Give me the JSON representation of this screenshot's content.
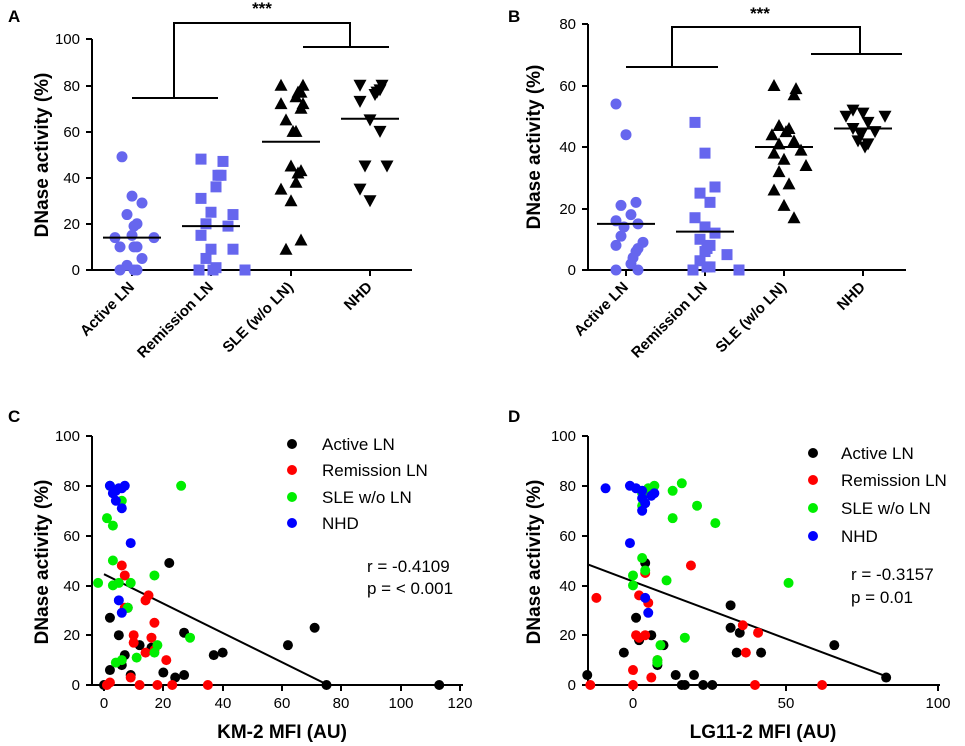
{
  "colors": {
    "active": "#000000",
    "remission": "#ff0000",
    "sle": "#00ee00",
    "nhd": "#0000ff",
    "scatter_blue": "#6666ee"
  },
  "chart_data": [
    {
      "id": "A",
      "type": "scatter",
      "panel_label": "A",
      "ylabel": "DNase activity (%)",
      "ylim": [
        0,
        100
      ],
      "yticks": [
        "0",
        "20",
        "40",
        "60",
        "80",
        "100"
      ],
      "categories": [
        "Active LN",
        "Remission LN",
        "SLE (w/o LN)",
        "NHD"
      ],
      "significance": "***",
      "series": [
        {
          "name": "Active LN",
          "marker": "circle",
          "color": "#6666ee",
          "mean": 14,
          "values": [
            49,
            32,
            29,
            24,
            20,
            19,
            15,
            14,
            14,
            10,
            10,
            10,
            5,
            2,
            0,
            0,
            0
          ]
        },
        {
          "name": "Remission LN",
          "marker": "square",
          "color": "#6666ee",
          "mean": 19,
          "values": [
            48,
            47,
            41,
            41,
            36,
            31,
            25,
            24,
            20,
            19,
            15,
            9,
            9,
            5,
            1,
            0,
            0,
            0
          ]
        },
        {
          "name": "SLE (w/o LN)",
          "marker": "triangle-up",
          "color": "#000000",
          "mean": 55.5,
          "values": [
            80,
            80,
            77,
            77,
            75,
            72,
            72,
            70,
            65,
            60,
            60,
            45,
            43,
            42,
            38,
            35,
            30,
            13,
            9
          ]
        },
        {
          "name": "NHD",
          "marker": "triangle-down",
          "color": "#000000",
          "mean": 65.5,
          "values": [
            80,
            80,
            78,
            77,
            76,
            73,
            65,
            60,
            45,
            45,
            35,
            30
          ]
        }
      ]
    },
    {
      "id": "B",
      "type": "scatter",
      "panel_label": "B",
      "ylabel": "DNase activity (%)",
      "ylim": [
        0,
        80
      ],
      "yticks": [
        "0",
        "20",
        "40",
        "60",
        "80"
      ],
      "categories": [
        "Active LN",
        "Remission LN",
        "SLE (w/o LN)",
        "NHD"
      ],
      "significance": "***",
      "series": [
        {
          "name": "Active LN",
          "marker": "circle",
          "color": "#6666ee",
          "mean": 15,
          "values": [
            54,
            44,
            22,
            21,
            18,
            16,
            15,
            14,
            11,
            9,
            8,
            7,
            6,
            4,
            2,
            0,
            0
          ]
        },
        {
          "name": "Remission LN",
          "marker": "square",
          "color": "#6666ee",
          "mean": 12.5,
          "values": [
            48,
            38,
            27,
            25,
            22,
            17,
            14,
            12,
            10,
            8,
            7,
            6,
            5,
            3,
            1,
            1,
            0,
            0
          ]
        },
        {
          "name": "SLE (w/o LN)",
          "marker": "triangle-up",
          "color": "#000000",
          "mean": 40,
          "values": [
            60,
            59,
            57,
            47,
            46,
            45,
            44,
            42,
            41,
            39,
            38,
            36,
            34,
            32,
            28,
            26,
            21,
            17
          ]
        },
        {
          "name": "NHD",
          "marker": "triangle-down",
          "color": "#000000",
          "mean": 46,
          "values": [
            52,
            51,
            50,
            50,
            48,
            46,
            45,
            44,
            42,
            41,
            40
          ]
        }
      ]
    },
    {
      "id": "C",
      "type": "scatter",
      "panel_label": "C",
      "xlabel": "KM-2 MFI (AU)",
      "ylabel": "DNase activity (%)",
      "xlim": [
        0,
        120
      ],
      "ylim": [
        0,
        100
      ],
      "xticks": [
        "0",
        "20",
        "40",
        "60",
        "80",
        "100",
        "120"
      ],
      "yticks": [
        "0",
        "20",
        "40",
        "60",
        "80",
        "100"
      ],
      "stat_r": "r = -0.4109",
      "stat_p": "p = < 0.001",
      "regression": {
        "x0": 0,
        "y0": 44.5,
        "x1": 75.5,
        "y1": 0
      },
      "legend": [
        "Active LN",
        "Remission LN",
        "SLE w/o LN",
        "NHD"
      ],
      "series": [
        {
          "name": "Active LN",
          "color": "#000000",
          "points": [
            [
              22,
              49
            ],
            [
              71,
              23
            ],
            [
              27,
              21
            ],
            [
              62,
              16
            ],
            [
              8,
              31
            ],
            [
              12,
              16
            ],
            [
              37,
              12
            ],
            [
              40,
              13
            ],
            [
              2,
              27
            ],
            [
              5,
              20
            ],
            [
              7,
              12
            ],
            [
              20,
              5
            ],
            [
              24,
              3
            ],
            [
              27,
              4
            ],
            [
              9,
              4
            ],
            [
              2,
              6
            ],
            [
              0,
              0
            ],
            [
              75,
              0
            ],
            [
              113,
              0
            ],
            [
              6,
              8
            ],
            [
              16,
              15
            ]
          ]
        },
        {
          "name": "Remission LN",
          "color": "#ff0000",
          "points": [
            [
              6,
              48
            ],
            [
              7,
              44
            ],
            [
              7,
              31
            ],
            [
              14,
              34
            ],
            [
              15,
              36
            ],
            [
              17,
              25
            ],
            [
              10,
              20
            ],
            [
              10,
              17
            ],
            [
              14,
              13
            ],
            [
              16,
              19
            ],
            [
              17,
              14
            ],
            [
              21,
              10
            ],
            [
              9,
              3
            ],
            [
              2,
              1
            ],
            [
              1,
              0
            ],
            [
              12,
              0
            ],
            [
              23,
              0
            ],
            [
              35,
              0
            ],
            [
              18,
              0
            ]
          ]
        },
        {
          "name": "SLE w/o LN",
          "color": "#00ee00",
          "points": [
            [
              2,
              80
            ],
            [
              26,
              80
            ],
            [
              1,
              67
            ],
            [
              3,
              64
            ],
            [
              6,
              74
            ],
            [
              3,
              50
            ],
            [
              3,
              40
            ],
            [
              5,
              41
            ],
            [
              -2,
              41
            ],
            [
              9,
              41
            ],
            [
              17,
              44
            ],
            [
              8,
              31
            ],
            [
              29,
              19
            ],
            [
              4,
              9
            ],
            [
              6,
              10
            ],
            [
              18,
              16
            ],
            [
              11,
              11
            ],
            [
              17,
              13
            ]
          ]
        },
        {
          "name": "NHD",
          "color": "#0000ff",
          "points": [
            [
              2,
              80
            ],
            [
              3,
              77
            ],
            [
              4,
              78
            ],
            [
              5,
              79
            ],
            [
              6,
              79
            ],
            [
              7,
              80
            ],
            [
              4,
              74
            ],
            [
              6,
              71
            ],
            [
              9,
              57
            ],
            [
              5,
              34
            ],
            [
              6,
              29
            ]
          ]
        }
      ]
    },
    {
      "id": "D",
      "type": "scatter",
      "panel_label": "D",
      "xlabel": "LG11-2 MFI (AU)",
      "ylabel": "DNase activity (%)",
      "xlim": [
        -15,
        100
      ],
      "ylim": [
        0,
        100
      ],
      "xticks": [
        "0",
        "50",
        "100"
      ],
      "yticks": [
        "0",
        "20",
        "40",
        "60",
        "80",
        "100"
      ],
      "stat_r": "r = -0.3157",
      "stat_p": "p = 0.01",
      "regression": {
        "x0": -15,
        "y0": 48.5,
        "x1": 83,
        "y1": 3.5
      },
      "legend": [
        "Active LN",
        "Remission LN",
        "SLE w/o LN",
        "NHD"
      ],
      "series": [
        {
          "name": "Active LN",
          "color": "#000000",
          "points": [
            [
              4,
              49
            ],
            [
              1,
              27
            ],
            [
              32,
              32
            ],
            [
              32,
              23
            ],
            [
              35,
              21
            ],
            [
              42,
              13
            ],
            [
              34,
              13
            ],
            [
              66,
              16
            ],
            [
              83,
              3
            ],
            [
              2,
              18
            ],
            [
              -3,
              13
            ],
            [
              8,
              8
            ],
            [
              -15,
              4
            ],
            [
              14,
              4
            ],
            [
              10,
              16
            ],
            [
              20,
              4
            ],
            [
              17,
              0
            ],
            [
              23,
              0
            ],
            [
              16,
              0
            ],
            [
              26,
              0
            ],
            [
              6,
              20
            ]
          ]
        },
        {
          "name": "Remission LN",
          "color": "#ff0000",
          "points": [
            [
              -12,
              35
            ],
            [
              19,
              48
            ],
            [
              4,
              45
            ],
            [
              2,
              36
            ],
            [
              5,
              33
            ],
            [
              2,
              19
            ],
            [
              1,
              20
            ],
            [
              41,
              21
            ],
            [
              36,
              24
            ],
            [
              37,
              13
            ],
            [
              8,
              10
            ],
            [
              0,
              6
            ],
            [
              -14,
              0
            ],
            [
              0,
              0
            ],
            [
              40,
              0
            ],
            [
              62,
              0
            ],
            [
              6,
              3
            ],
            [
              4,
              20
            ]
          ]
        },
        {
          "name": "SLE w/o LN",
          "color": "#00ee00",
          "points": [
            [
              13,
              78
            ],
            [
              16,
              81
            ],
            [
              21,
              72
            ],
            [
              27,
              65
            ],
            [
              3,
              77
            ],
            [
              5,
              79
            ],
            [
              7,
              80
            ],
            [
              3,
              72
            ],
            [
              13,
              67
            ],
            [
              3,
              51
            ],
            [
              4,
              46
            ],
            [
              0,
              44
            ],
            [
              0,
              40
            ],
            [
              11,
              42
            ],
            [
              51,
              41
            ],
            [
              17,
              19
            ],
            [
              8,
              9
            ],
            [
              9,
              16
            ],
            [
              8,
              10
            ]
          ]
        },
        {
          "name": "NHD",
          "color": "#0000ff",
          "points": [
            [
              -9,
              79
            ],
            [
              -1,
              80
            ],
            [
              1,
              79
            ],
            [
              3,
              78
            ],
            [
              3,
              75
            ],
            [
              4,
              73
            ],
            [
              6,
              76
            ],
            [
              7,
              77
            ],
            [
              3,
              70
            ],
            [
              -1,
              57
            ],
            [
              4,
              35
            ],
            [
              5,
              29
            ]
          ]
        }
      ]
    }
  ]
}
